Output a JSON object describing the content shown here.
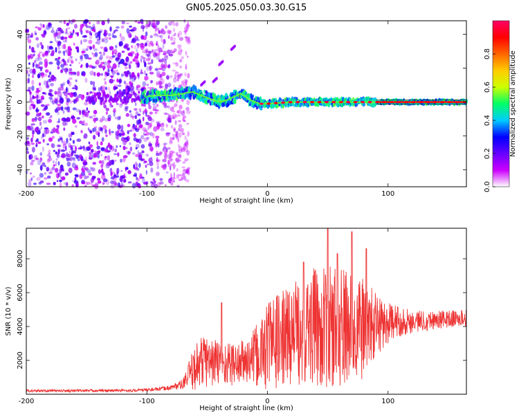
{
  "title": "GN05.2025.050.03.30.G15",
  "chart_data": [
    {
      "type": "heatmap",
      "xlabel": "Height of straight line (km)",
      "ylabel": "Frequency (Hz)",
      "xlim": [
        -200,
        165
      ],
      "ylim": [
        -50,
        48
      ],
      "xticks": [
        -200,
        -100,
        0,
        100
      ],
      "yticks": [
        -40,
        -20,
        0,
        20,
        40
      ],
      "colorbar": {
        "label": "Normalized spectral amplitude",
        "range": [
          0,
          1
        ],
        "ticks": [
          "0.0",
          "0.2",
          "0.4",
          "0.6",
          "0.8"
        ],
        "tick_values": [
          0.0,
          0.2,
          0.4,
          0.6,
          0.8
        ],
        "colormap": [
          "#ffffff",
          "#cc00ff",
          "#6600ff",
          "#0000ff",
          "#00ccff",
          "#00ff66",
          "#ccff00",
          "#ffcc00",
          "#ff6600",
          "#ff0000",
          "#ff0066"
        ]
      },
      "ridge": {
        "x": [
          -105,
          -90,
          -80,
          -70,
          -62,
          -55,
          -48,
          -40,
          -34,
          -28,
          -22,
          -18,
          -14,
          -10,
          -6,
          0,
          20,
          60,
          100,
          165
        ],
        "y": [
          3,
          4,
          4,
          5,
          6,
          4,
          2,
          0,
          1,
          3,
          5,
          3,
          1,
          0,
          -1,
          -1,
          0,
          0,
          0,
          0
        ]
      }
    },
    {
      "type": "line",
      "xlabel": "Height of straight line (km)",
      "ylabel": "SNR (10 * v/v)",
      "xlim": [
        -200,
        165
      ],
      "ylim": [
        0,
        9800
      ],
      "xticks": [
        -200,
        -100,
        0,
        100
      ],
      "yticks": [
        2000,
        4000,
        6000,
        8000
      ],
      "color": "#ee3333",
      "envelope": {
        "x": [
          -200,
          -110,
          -90,
          -80,
          -70,
          -62,
          -55,
          -45,
          -35,
          -25,
          -15,
          -5,
          0,
          10,
          20,
          30,
          40,
          50,
          55,
          60,
          70,
          80,
          90,
          100,
          110,
          120,
          140,
          165
        ],
        "mean": [
          200,
          220,
          300,
          400,
          600,
          1400,
          2000,
          1900,
          1800,
          1800,
          2000,
          2400,
          3000,
          3200,
          3600,
          3800,
          4000,
          3800,
          4000,
          3900,
          4000,
          3800,
          4100,
          4200,
          4300,
          4300,
          4400,
          4500
        ],
        "amplitude": [
          80,
          80,
          100,
          150,
          300,
          1200,
          1600,
          1500,
          1300,
          1300,
          1400,
          2200,
          2800,
          2800,
          3000,
          3300,
          3500,
          3600,
          3800,
          3700,
          3500,
          3000,
          2000,
          1200,
          900,
          700,
          550,
          500
        ]
      },
      "peaks": [
        {
          "x": -38,
          "y": 5400
        },
        {
          "x": 30,
          "y": 7800
        },
        {
          "x": 50,
          "y": 9800
        },
        {
          "x": 58,
          "y": 8300
        },
        {
          "x": 70,
          "y": 9600
        },
        {
          "x": 82,
          "y": 8600
        }
      ]
    }
  ]
}
